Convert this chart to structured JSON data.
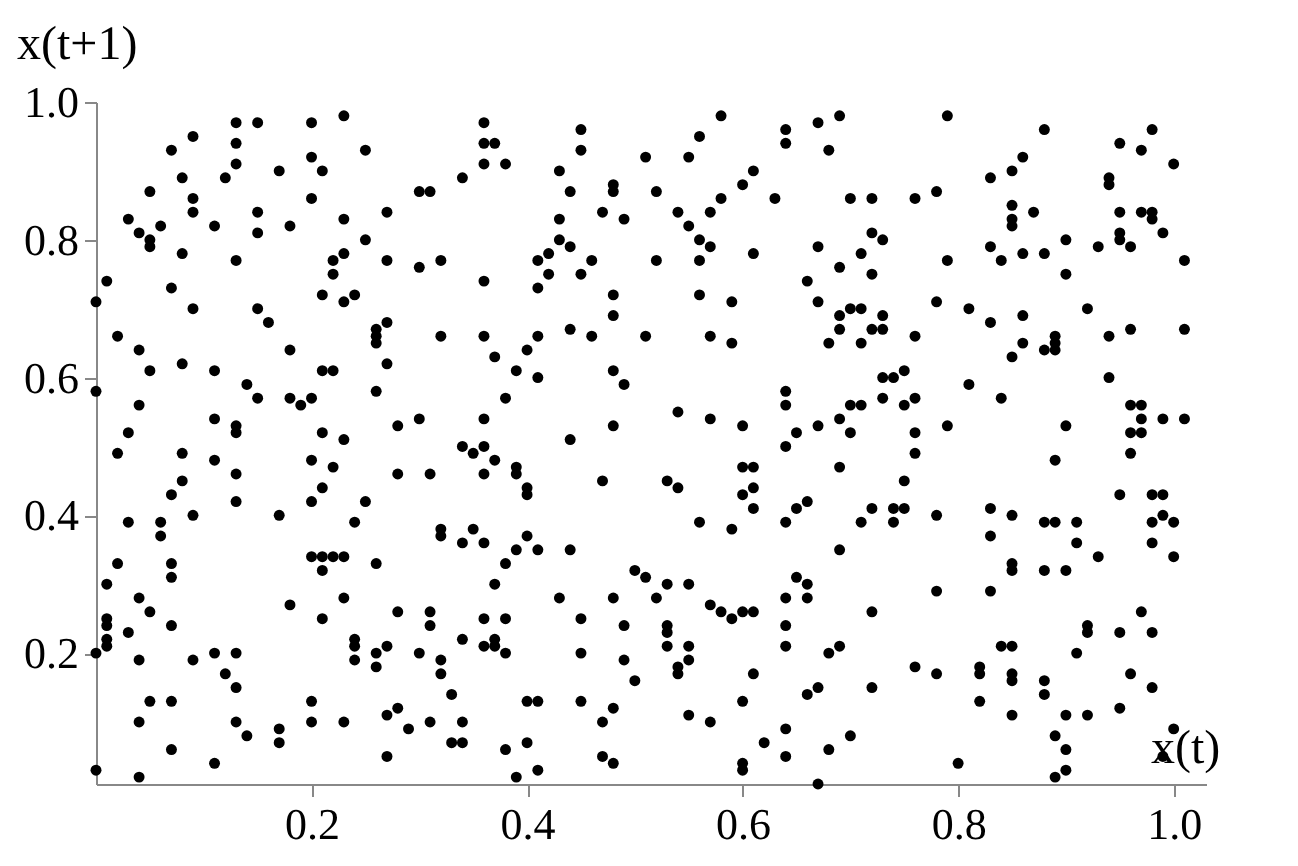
{
  "chart_data": {
    "type": "scatter",
    "xlabel": "x(t)",
    "ylabel": "x(t+1)",
    "color": "#000000",
    "marker": "circle",
    "xlim": [
      0,
      1.03
    ],
    "ylim": [
      0.01,
      1.0
    ],
    "xticks": [
      0.2,
      0.4,
      0.6,
      0.8,
      {
        "value": 1,
        "label": "1.0"
      }
    ],
    "yticks": [
      0.2,
      0.4,
      0.6,
      0.8,
      {
        "value": 1,
        "label": "1.0"
      }
    ],
    "x": [
      0.0,
      0.01,
      0.02,
      0.03,
      0.04,
      0.05,
      0.05,
      0.05,
      0.06,
      0.07,
      0.09,
      0.08,
      0.09,
      0.09,
      0.08,
      0.07,
      0.09,
      0.11,
      0.13,
      0.12,
      0.13,
      0.13,
      0.13,
      0.15,
      0.15,
      0.15,
      0.15,
      0.16,
      0.17,
      0.18,
      0.2,
      0.2,
      0.23,
      0.21,
      0.2,
      0.23,
      0.22,
      0.22,
      0.23,
      0.21,
      0.23,
      0.24,
      0.25,
      0.25,
      0.27,
      0.27,
      0.26,
      0.26,
      0.27,
      0.26,
      0.27,
      0.26,
      0.3,
      0.31,
      0.3,
      0.32,
      0.0,
      0.04,
      0.04,
      0.05,
      0.08,
      0.11,
      0.14,
      0.15,
      0.18,
      0.2,
      0.19,
      0.21,
      0.22,
      0.18,
      0.36,
      0.36,
      0.37,
      0.36,
      0.38,
      0.34,
      0.32,
      0.36,
      0.45,
      0.45,
      0.43,
      0.44,
      0.43,
      0.43,
      0.44,
      0.42,
      0.41,
      0.42,
      0.41,
      0.48,
      0.48,
      0.47,
      0.49,
      0.46,
      0.45,
      0.48,
      0.48,
      0.51,
      0.52,
      0.52,
      0.54,
      0.55,
      0.56,
      0.58,
      0.55,
      0.56,
      0.57,
      0.57,
      0.58,
      0.56,
      0.56,
      0.59,
      0.6,
      0.61,
      0.61,
      0.63,
      0.64,
      0.64,
      0.67,
      0.69,
      0.68,
      0.67,
      0.69,
      0.66,
      0.67,
      0.69,
      0.69,
      0.68,
      0.36,
      0.37,
      0.4,
      0.41,
      0.39,
      0.41,
      0.38,
      0.44,
      0.46,
      0.51,
      0.48,
      0.49,
      0.57,
      0.59,
      0.64,
      0.64,
      0.79,
      0.88,
      0.98,
      0.95,
      0.97,
      1.0,
      0.86,
      0.85,
      0.83,
      0.94,
      0.94,
      0.7,
      0.72,
      0.76,
      0.78,
      0.85,
      0.87,
      0.85,
      0.85,
      0.95,
      0.97,
      0.98,
      0.98,
      0.95,
      0.95,
      0.99,
      0.96,
      0.93,
      0.9,
      0.88,
      0.86,
      0.84,
      0.83,
      0.79,
      0.72,
      0.73,
      0.71,
      0.72,
      1.01,
      0.9,
      0.7,
      0.71,
      0.73,
      0.71,
      0.72,
      0.73,
      0.76,
      0.78,
      0.81,
      0.83,
      0.86,
      0.86,
      0.85,
      0.88,
      0.89,
      0.89,
      0.89,
      0.92,
      0.94,
      0.96,
      1.01,
      0.94,
      0.73,
      0.74,
      0.75,
      0.81,
      0.73,
      0.7,
      0.71,
      0.75,
      0.76,
      0.84,
      0.96,
      0.97,
      0.0,
      0.04,
      0.07,
      0.11,
      0.04,
      0.05,
      0.07,
      0.04,
      0.03,
      0.0,
      0.01,
      0.01,
      0.01,
      0.01,
      0.01,
      0.02,
      0.03,
      0.02,
      0.03,
      0.04,
      0.05,
      0.06,
      0.06,
      0.07,
      0.07,
      0.07,
      0.07,
      0.08,
      0.08,
      0.09,
      0.09,
      0.11,
      0.11,
      0.13,
      0.13,
      0.13,
      0.13,
      0.11,
      0.13,
      0.12,
      0.13,
      0.13,
      0.14,
      0.17,
      0.18,
      0.17,
      0.17,
      0.2,
      0.21,
      0.2,
      0.21,
      0.22,
      0.23,
      0.2,
      0.21,
      0.21,
      0.22,
      0.23,
      0.23,
      0.21,
      0.24,
      0.24,
      0.24,
      0.24,
      0.25,
      0.26,
      0.26,
      0.26,
      0.27,
      0.28,
      0.2,
      0.2,
      0.23,
      0.27,
      0.27,
      0.28,
      0.29,
      0.3,
      0.31,
      0.31,
      0.31,
      0.28,
      0.28,
      0.3,
      0.31,
      0.32,
      0.32,
      0.32,
      0.32,
      0.33,
      0.34,
      0.33,
      0.34,
      0.34,
      0.35,
      0.36,
      0.36,
      0.36,
      0.37,
      0.39,
      0.39,
      0.4,
      0.4,
      0.34,
      0.35,
      0.36,
      0.38,
      0.39,
      0.4,
      0.41,
      0.44,
      0.37,
      0.43,
      0.36,
      0.38,
      0.34,
      0.36,
      0.37,
      0.37,
      0.38,
      0.45,
      0.45,
      0.4,
      0.41,
      0.4,
      0.38,
      0.39,
      0.41,
      0.45,
      0.48,
      0.47,
      0.47,
      0.48,
      0.44,
      0.47,
      0.48,
      0.48,
      0.49,
      0.49,
      0.5,
      0.5,
      0.51,
      0.52,
      0.53,
      0.55,
      0.53,
      0.53,
      0.53,
      0.55,
      0.55,
      0.54,
      0.54,
      0.55,
      0.57,
      0.54,
      0.57,
      0.53,
      0.54,
      0.56,
      0.57,
      0.58,
      0.59,
      0.6,
      0.61,
      0.59,
      0.6,
      0.6,
      0.61,
      0.61,
      0.6,
      0.61,
      0.61,
      0.6,
      0.62,
      0.6,
      0.6,
      0.64,
      0.64,
      0.64,
      0.64,
      0.64,
      0.64,
      0.65,
      0.66,
      0.64,
      0.65,
      0.67,
      0.69,
      0.69,
      0.69,
      0.65,
      0.66,
      0.66,
      0.68,
      0.69,
      0.66,
      0.67,
      0.68,
      0.67,
      0.7,
      0.75,
      0.76,
      0.76,
      0.79,
      0.75,
      0.74,
      0.72,
      0.74,
      0.71,
      0.78,
      0.78,
      0.72,
      0.76,
      0.78,
      0.72,
      0.7,
      0.8,
      0.83,
      0.83,
      0.85,
      0.89,
      0.9,
      0.88,
      0.89,
      0.91,
      0.91,
      0.93,
      0.85,
      0.85,
      0.88,
      0.9,
      0.83,
      0.95,
      0.96,
      0.96,
      0.97,
      0.97,
      0.99,
      1.01,
      0.98,
      0.99,
      0.98,
      0.99,
      1.0,
      0.98,
      1.0,
      0.84,
      0.85,
      0.82,
      0.82,
      0.85,
      0.85,
      0.88,
      0.88,
      0.82,
      0.85,
      0.92,
      0.92,
      0.91,
      0.95,
      0.97,
      0.98,
      0.96,
      0.98,
      0.9,
      0.92,
      0.95,
      0.89,
      0.9,
      0.89,
      0.9,
      0.99,
      1.0
    ],
    "values": [
      0.71,
      0.74,
      0.66,
      0.83,
      0.81,
      0.8,
      0.79,
      0.87,
      0.82,
      0.93,
      0.95,
      0.89,
      0.86,
      0.84,
      0.78,
      0.73,
      0.7,
      0.82,
      0.77,
      0.89,
      0.91,
      0.94,
      0.97,
      0.97,
      0.84,
      0.81,
      0.7,
      0.68,
      0.9,
      0.82,
      0.92,
      0.97,
      0.98,
      0.9,
      0.86,
      0.83,
      0.77,
      0.75,
      0.78,
      0.72,
      0.71,
      0.72,
      0.93,
      0.8,
      0.84,
      0.77,
      0.66,
      0.67,
      0.68,
      0.65,
      0.62,
      0.58,
      0.87,
      0.87,
      0.76,
      0.66,
      0.58,
      0.56,
      0.64,
      0.61,
      0.62,
      0.61,
      0.59,
      0.57,
      0.57,
      0.57,
      0.56,
      0.61,
      0.61,
      0.64,
      0.97,
      0.94,
      0.94,
      0.91,
      0.91,
      0.89,
      0.77,
      0.74,
      0.96,
      0.93,
      0.9,
      0.87,
      0.83,
      0.8,
      0.79,
      0.78,
      0.77,
      0.75,
      0.73,
      0.88,
      0.87,
      0.84,
      0.83,
      0.77,
      0.75,
      0.72,
      0.69,
      0.92,
      0.87,
      0.77,
      0.84,
      0.92,
      0.95,
      0.98,
      0.82,
      0.8,
      0.79,
      0.84,
      0.86,
      0.77,
      0.72,
      0.71,
      0.88,
      0.9,
      0.78,
      0.86,
      0.96,
      0.94,
      0.97,
      0.98,
      0.93,
      0.79,
      0.76,
      0.74,
      0.71,
      0.69,
      0.67,
      0.65,
      0.66,
      0.63,
      0.64,
      0.66,
      0.61,
      0.6,
      0.57,
      0.67,
      0.66,
      0.66,
      0.61,
      0.59,
      0.66,
      0.65,
      0.58,
      0.56,
      0.98,
      0.96,
      0.96,
      0.94,
      0.93,
      0.91,
      0.92,
      0.9,
      0.89,
      0.89,
      0.88,
      0.86,
      0.86,
      0.86,
      0.87,
      0.85,
      0.84,
      0.83,
      0.82,
      0.84,
      0.84,
      0.84,
      0.83,
      0.81,
      0.8,
      0.81,
      0.79,
      0.79,
      0.8,
      0.78,
      0.78,
      0.77,
      0.79,
      0.77,
      0.81,
      0.8,
      0.78,
      0.75,
      0.77,
      0.75,
      0.7,
      0.7,
      0.69,
      0.65,
      0.67,
      0.67,
      0.66,
      0.71,
      0.7,
      0.68,
      0.69,
      0.65,
      0.63,
      0.64,
      0.66,
      0.64,
      0.65,
      0.7,
      0.66,
      0.67,
      0.67,
      0.6,
      0.6,
      0.6,
      0.61,
      0.59,
      0.57,
      0.56,
      0.56,
      0.56,
      0.57,
      0.57,
      0.56,
      0.56,
      0.03,
      0.02,
      0.06,
      0.04,
      0.1,
      0.13,
      0.13,
      0.19,
      0.23,
      0.2,
      0.21,
      0.22,
      0.24,
      0.25,
      0.3,
      0.33,
      0.39,
      0.49,
      0.52,
      0.28,
      0.26,
      0.37,
      0.39,
      0.33,
      0.31,
      0.24,
      0.43,
      0.45,
      0.49,
      0.4,
      0.19,
      0.48,
      0.54,
      0.53,
      0.52,
      0.46,
      0.42,
      0.2,
      0.2,
      0.17,
      0.15,
      0.1,
      0.08,
      0.4,
      0.27,
      0.09,
      0.07,
      0.48,
      0.52,
      0.42,
      0.44,
      0.47,
      0.51,
      0.34,
      0.34,
      0.32,
      0.34,
      0.34,
      0.28,
      0.25,
      0.22,
      0.21,
      0.19,
      0.39,
      0.42,
      0.33,
      0.2,
      0.18,
      0.21,
      0.26,
      0.13,
      0.1,
      0.1,
      0.05,
      0.11,
      0.12,
      0.09,
      0.2,
      0.26,
      0.24,
      0.1,
      0.46,
      0.53,
      0.54,
      0.46,
      0.38,
      0.37,
      0.19,
      0.17,
      0.14,
      0.1,
      0.07,
      0.07,
      0.5,
      0.49,
      0.5,
      0.54,
      0.46,
      0.48,
      0.47,
      0.46,
      0.44,
      0.43,
      0.36,
      0.38,
      0.36,
      0.33,
      0.35,
      0.37,
      0.35,
      0.35,
      0.3,
      0.28,
      0.25,
      0.25,
      0.22,
      0.21,
      0.22,
      0.21,
      0.2,
      0.25,
      0.2,
      0.13,
      0.13,
      0.07,
      0.06,
      0.02,
      0.03,
      0.13,
      0.12,
      0.1,
      0.05,
      0.04,
      0.51,
      0.45,
      0.53,
      0.28,
      0.24,
      0.19,
      0.16,
      0.32,
      0.31,
      0.28,
      0.3,
      0.3,
      0.24,
      0.23,
      0.21,
      0.21,
      0.19,
      0.18,
      0.17,
      0.11,
      0.1,
      0.55,
      0.54,
      0.45,
      0.44,
      0.39,
      0.27,
      0.26,
      0.25,
      0.26,
      0.26,
      0.38,
      0.53,
      0.47,
      0.47,
      0.44,
      0.43,
      0.41,
      0.17,
      0.13,
      0.07,
      0.04,
      0.03,
      0.24,
      0.21,
      0.09,
      0.05,
      0.39,
      0.28,
      0.41,
      0.42,
      0.5,
      0.52,
      0.53,
      0.54,
      0.47,
      0.35,
      0.31,
      0.3,
      0.28,
      0.2,
      0.21,
      0.14,
      0.15,
      0.06,
      0.01,
      0.52,
      0.45,
      0.52,
      0.49,
      0.53,
      0.41,
      0.41,
      0.41,
      0.39,
      0.39,
      0.4,
      0.29,
      0.26,
      0.18,
      0.17,
      0.15,
      0.08,
      0.04,
      0.41,
      0.37,
      0.4,
      0.48,
      0.53,
      0.39,
      0.39,
      0.39,
      0.36,
      0.34,
      0.33,
      0.32,
      0.32,
      0.32,
      0.29,
      0.43,
      0.49,
      0.52,
      0.52,
      0.54,
      0.54,
      0.54,
      0.43,
      0.43,
      0.39,
      0.4,
      0.39,
      0.36,
      0.34,
      0.21,
      0.21,
      0.18,
      0.17,
      0.17,
      0.16,
      0.16,
      0.14,
      0.13,
      0.11,
      0.24,
      0.23,
      0.2,
      0.23,
      0.26,
      0.23,
      0.17,
      0.15,
      0.11,
      0.11,
      0.12,
      0.08,
      0.06,
      0.02,
      0.03,
      0.05,
      0.09
    ]
  }
}
